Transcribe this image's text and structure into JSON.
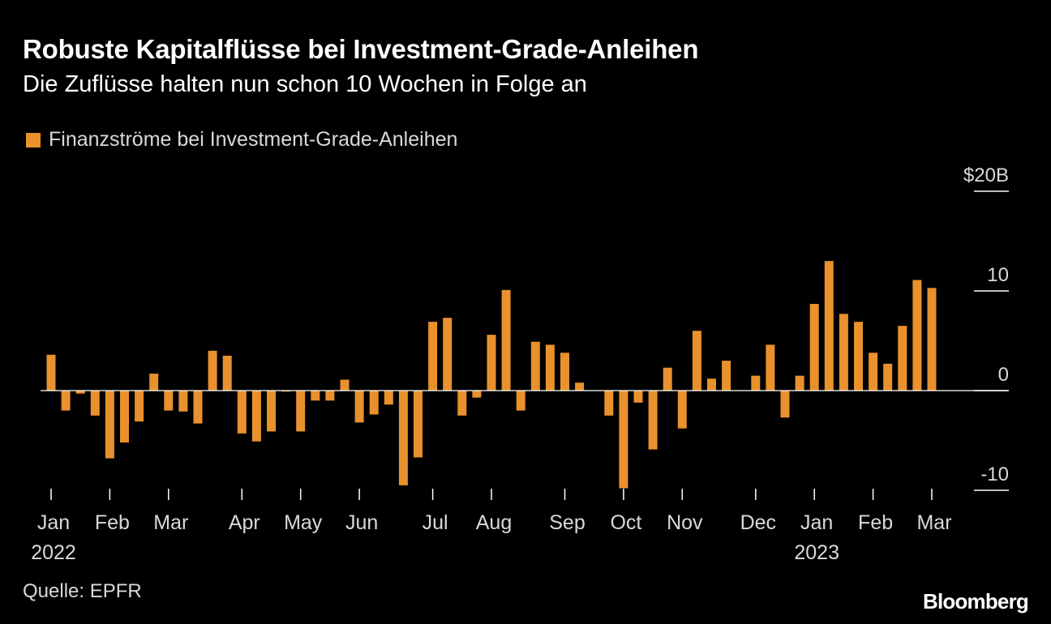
{
  "header": {
    "title": "Robuste Kapitalflüsse bei Investment-Grade-Anleihen",
    "subtitle": "Die Zuflüsse halten nun schon 10 Wochen in Folge an"
  },
  "footer": {
    "source": "Quelle: EPFR",
    "brand": "Bloomberg"
  },
  "colors": {
    "background": "#000000",
    "bar": "#e8912d",
    "text": "#ffffff",
    "muted": "#d9d9d9",
    "axis": "#ffffff"
  },
  "chart_data": {
    "type": "bar",
    "legend": {
      "entries": [
        "Finanzströme bei Investment-Grade-Anleihen"
      ],
      "placement": "top-left"
    },
    "y_axis": {
      "position": "right",
      "ylim": [
        -10,
        20
      ],
      "ticks": [
        {
          "value": 20,
          "label": "$20B"
        },
        {
          "value": 10,
          "label": "10"
        },
        {
          "value": 0,
          "label": "0"
        },
        {
          "value": -10,
          "label": "-10"
        }
      ]
    },
    "x_axis": {
      "ticks": [
        {
          "week": 1,
          "label": "Jan",
          "year": "2022"
        },
        {
          "week": 5,
          "label": "Feb"
        },
        {
          "week": 9,
          "label": "Mar"
        },
        {
          "week": 14,
          "label": "Apr"
        },
        {
          "week": 18,
          "label": "May"
        },
        {
          "week": 22,
          "label": "Jun"
        },
        {
          "week": 27,
          "label": "Jul"
        },
        {
          "week": 31,
          "label": "Aug"
        },
        {
          "week": 36,
          "label": "Sep"
        },
        {
          "week": 40,
          "label": "Oct"
        },
        {
          "week": 44,
          "label": "Nov"
        },
        {
          "week": 49,
          "label": "Dec"
        },
        {
          "week": 53,
          "label": "Jan",
          "year": "2023"
        },
        {
          "week": 57,
          "label": "Feb"
        },
        {
          "week": 61,
          "label": "Mar"
        }
      ]
    },
    "grid": false,
    "values": [
      3.6,
      -2.0,
      -0.3,
      -2.5,
      -6.8,
      -5.2,
      -3.1,
      1.7,
      -2.0,
      -2.1,
      -3.3,
      4.0,
      3.5,
      -4.3,
      -5.1,
      -4.1,
      -0.1,
      -4.1,
      -1.0,
      -1.0,
      1.1,
      -3.2,
      -2.4,
      -1.4,
      -9.5,
      -6.7,
      6.9,
      7.3,
      -2.5,
      -0.7,
      5.6,
      10.1,
      -2.0,
      4.9,
      4.6,
      3.8,
      0.8,
      0,
      -2.5,
      -9.8,
      -1.2,
      -5.9,
      2.3,
      -3.8,
      6.0,
      1.2,
      3.0,
      0,
      1.5,
      4.6,
      -2.7,
      1.5,
      8.7,
      13.0,
      7.7,
      6.9,
      3.8,
      2.7,
      6.5,
      11.1,
      10.3
    ]
  }
}
